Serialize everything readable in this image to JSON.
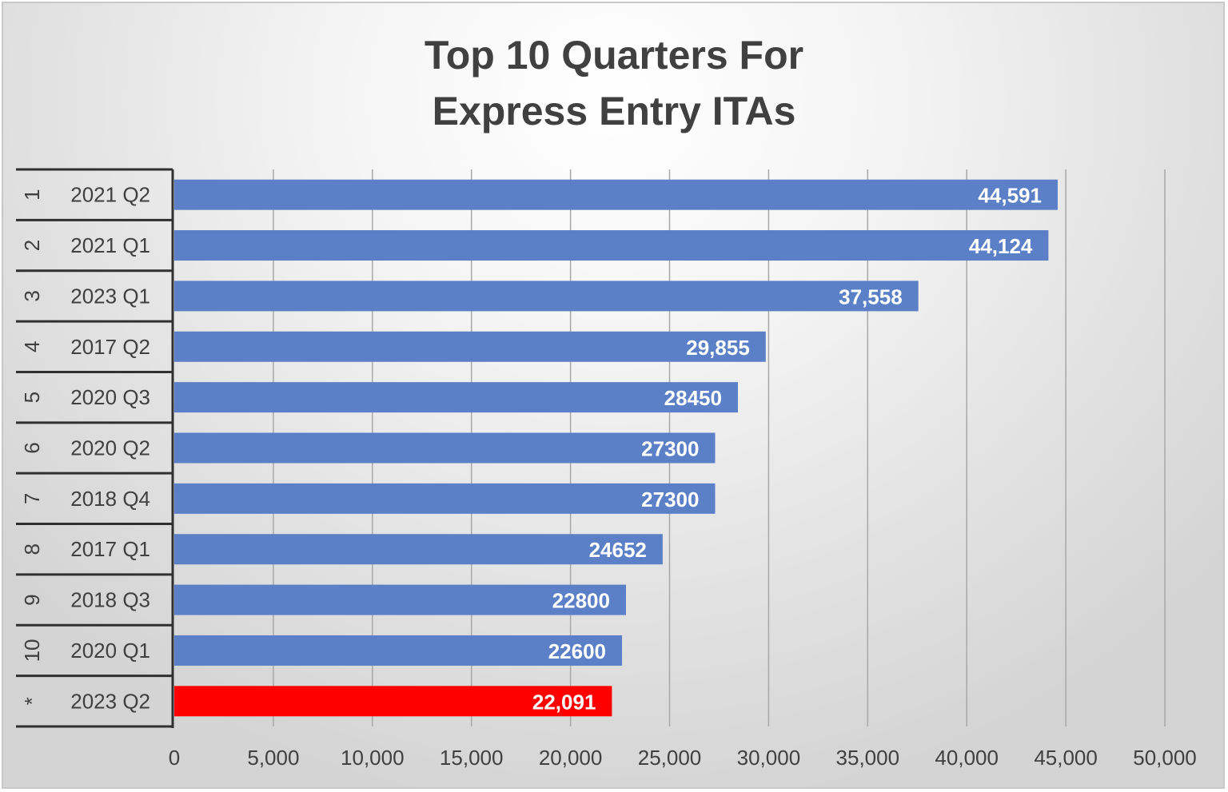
{
  "chart_data": {
    "type": "bar",
    "orientation": "horizontal",
    "title_lines": [
      "Top 10 Quarters For",
      "Express Entry ITAs"
    ],
    "xlabel": "",
    "ylabel": "",
    "xlim": [
      0,
      50000
    ],
    "x_ticks": [
      "0",
      "5,000",
      "10,000",
      "15,000",
      "20,000",
      "25,000",
      "30,000",
      "35,000",
      "40,000",
      "45,000",
      "50,000"
    ],
    "x_tick_values": [
      0,
      5000,
      10000,
      15000,
      20000,
      25000,
      30000,
      35000,
      40000,
      45000,
      50000
    ],
    "grid": "vertical",
    "legend": "none",
    "ranks": [
      "1",
      "2",
      "3",
      "4",
      "5",
      "6",
      "7",
      "8",
      "9",
      "10",
      "*"
    ],
    "categories": [
      "2021 Q2",
      "2021 Q1",
      "2023 Q1",
      "2017 Q2",
      "2020 Q3",
      "2020 Q2",
      "2018 Q4",
      "2017 Q1",
      "2018 Q3",
      "2020 Q1",
      "2023 Q2"
    ],
    "values": [
      44591,
      44124,
      37558,
      29855,
      28450,
      27300,
      27300,
      24652,
      22800,
      22600,
      22091
    ],
    "data_labels": [
      "44,591",
      "44,124",
      "37,558",
      "29,855",
      "28450",
      "27300",
      "27300",
      "24652",
      "22800",
      "22600",
      "22,091"
    ],
    "highlight": [
      false,
      false,
      false,
      false,
      false,
      false,
      false,
      false,
      false,
      false,
      true
    ]
  },
  "colors": {
    "bar": "#5b80c7",
    "highlight": "#ff0000",
    "grid": "#a8a8a8",
    "axis": "#303030",
    "title": "#404040",
    "text": "#404040",
    "bar_label": "#ffffff"
  }
}
